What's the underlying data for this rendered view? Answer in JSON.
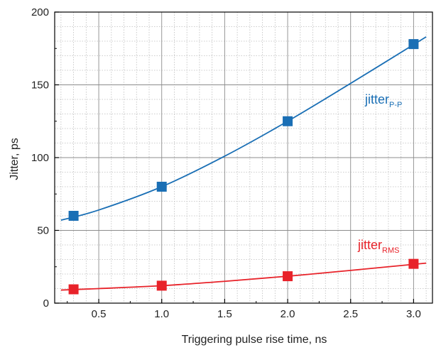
{
  "chart_data": {
    "type": "line",
    "xlabel": "Triggering pulse rise time, ns",
    "ylabel": "Jitter, ps",
    "xlim": [
      0.15,
      3.15
    ],
    "ylim": [
      0,
      200
    ],
    "x_ticks": [
      "0.5",
      "1.0",
      "1.5",
      "2.0",
      "2.5",
      "3.0"
    ],
    "y_ticks": [
      "0",
      "50",
      "100",
      "150",
      "200"
    ],
    "grid": true,
    "series": [
      {
        "name": "jitter",
        "subscript": "P-P",
        "color": "#1a6fb5",
        "points": [
          {
            "x": 0.3,
            "y": 60
          },
          {
            "x": 1.0,
            "y": 80
          },
          {
            "x": 2.0,
            "y": 125
          },
          {
            "x": 3.0,
            "y": 178
          }
        ],
        "fit": [
          {
            "x": 0.2,
            "y": 57
          },
          {
            "x": 0.5,
            "y": 64
          },
          {
            "x": 1.0,
            "y": 80
          },
          {
            "x": 1.5,
            "y": 101
          },
          {
            "x": 2.0,
            "y": 125
          },
          {
            "x": 2.5,
            "y": 151
          },
          {
            "x": 3.1,
            "y": 183
          }
        ]
      },
      {
        "name": "jitter",
        "subscript": "RMS",
        "color": "#e8232a",
        "points": [
          {
            "x": 0.3,
            "y": 9.5
          },
          {
            "x": 1.0,
            "y": 12
          },
          {
            "x": 2.0,
            "y": 18.5
          },
          {
            "x": 3.0,
            "y": 27
          }
        ],
        "fit": [
          {
            "x": 0.2,
            "y": 9
          },
          {
            "x": 0.5,
            "y": 10
          },
          {
            "x": 1.0,
            "y": 12
          },
          {
            "x": 1.5,
            "y": 15
          },
          {
            "x": 2.0,
            "y": 18.5
          },
          {
            "x": 2.5,
            "y": 22.5
          },
          {
            "x": 3.1,
            "y": 27.5
          }
        ]
      }
    ]
  }
}
